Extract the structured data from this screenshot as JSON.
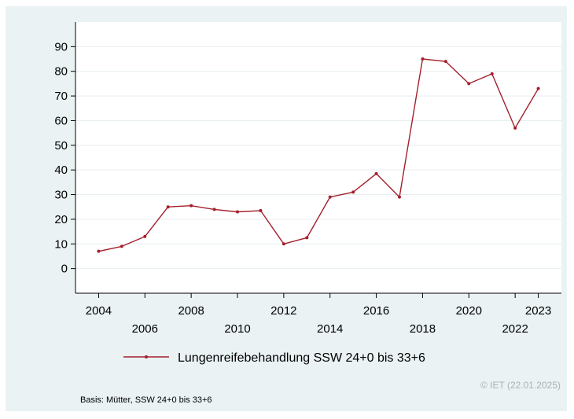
{
  "chart_data": {
    "type": "line",
    "title": "",
    "xlabel": "",
    "ylabel": "",
    "x": [
      2004,
      2005,
      2006,
      2007,
      2008,
      2009,
      2010,
      2011,
      2012,
      2013,
      2014,
      2015,
      2016,
      2017,
      2018,
      2019,
      2020,
      2021,
      2022,
      2023
    ],
    "series": [
      {
        "name": "Lungenreifebehandlung SSW 24+0 bis 33+6",
        "color": "#a3202c",
        "values": [
          7,
          9,
          13,
          25,
          25.5,
          24,
          23,
          23.5,
          10,
          12.5,
          29,
          31,
          38.5,
          29,
          85,
          84,
          75,
          79,
          57,
          73
        ]
      }
    ],
    "ylim": [
      -10,
      100
    ],
    "yticks": [
      0,
      10,
      20,
      30,
      40,
      50,
      60,
      70,
      80,
      90
    ],
    "xticks_upper": [
      "2004",
      "2008",
      "2012",
      "2016",
      "2020",
      "2023"
    ],
    "xticks_lower": [
      "2006",
      "2010",
      "2014",
      "2018",
      "2022"
    ],
    "grid": true,
    "legend_position": "bottom"
  },
  "footnote": "Basis: Mütter, SSW 24+0 bis 33+6",
  "credit": "© IET (22.01.2025)"
}
